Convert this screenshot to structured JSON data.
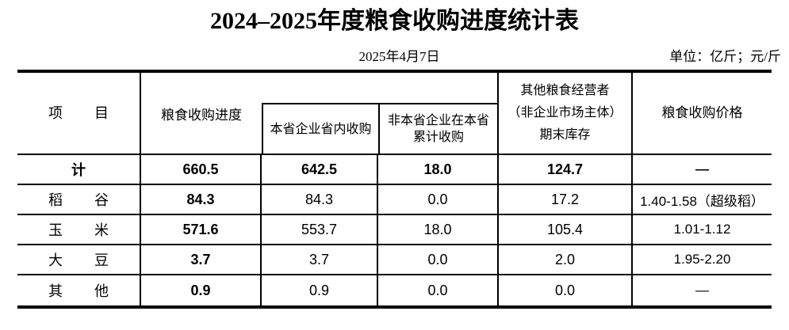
{
  "title": "2024–2025年度粮食收购进度统计表",
  "date": "2025年4月7日",
  "unit": "单位：亿斤；元/斤",
  "colors": {
    "text": "#000000",
    "background": "#ffffff",
    "border": "#000000"
  },
  "table": {
    "header": {
      "item_chars": [
        "项",
        "目"
      ],
      "progress": "粮食收购进度",
      "local": "本省企业省内收购",
      "nonlocal_line1": "非本省企业在本省",
      "nonlocal_line2": "累计收购",
      "other_line1": "其他粮食经营者",
      "other_line2": "（非企业市场主体）",
      "other_line3": "期末库存",
      "price": "粮食收购价格"
    },
    "rows": [
      {
        "label": [
          "计"
        ],
        "progress": "660.5",
        "local": "642.5",
        "nonlocal": "18.0",
        "stock": "124.7",
        "price": "—"
      },
      {
        "label": [
          "稻",
          "谷"
        ],
        "progress": "84.3",
        "local": "84.3",
        "nonlocal": "0.0",
        "stock": "17.2",
        "price": "1.40-1.58（超级稻）"
      },
      {
        "label": [
          "玉",
          "米"
        ],
        "progress": "571.6",
        "local": "553.7",
        "nonlocal": "18.0",
        "stock": "105.4",
        "price": "1.01-1.12"
      },
      {
        "label": [
          "大",
          "豆"
        ],
        "progress": "3.7",
        "local": "3.7",
        "nonlocal": "0.0",
        "stock": "2.0",
        "price": "1.95-2.20"
      },
      {
        "label": [
          "其",
          "他"
        ],
        "progress": "0.9",
        "local": "0.9",
        "nonlocal": "0.0",
        "stock": "0.0",
        "price": "—"
      }
    ]
  }
}
